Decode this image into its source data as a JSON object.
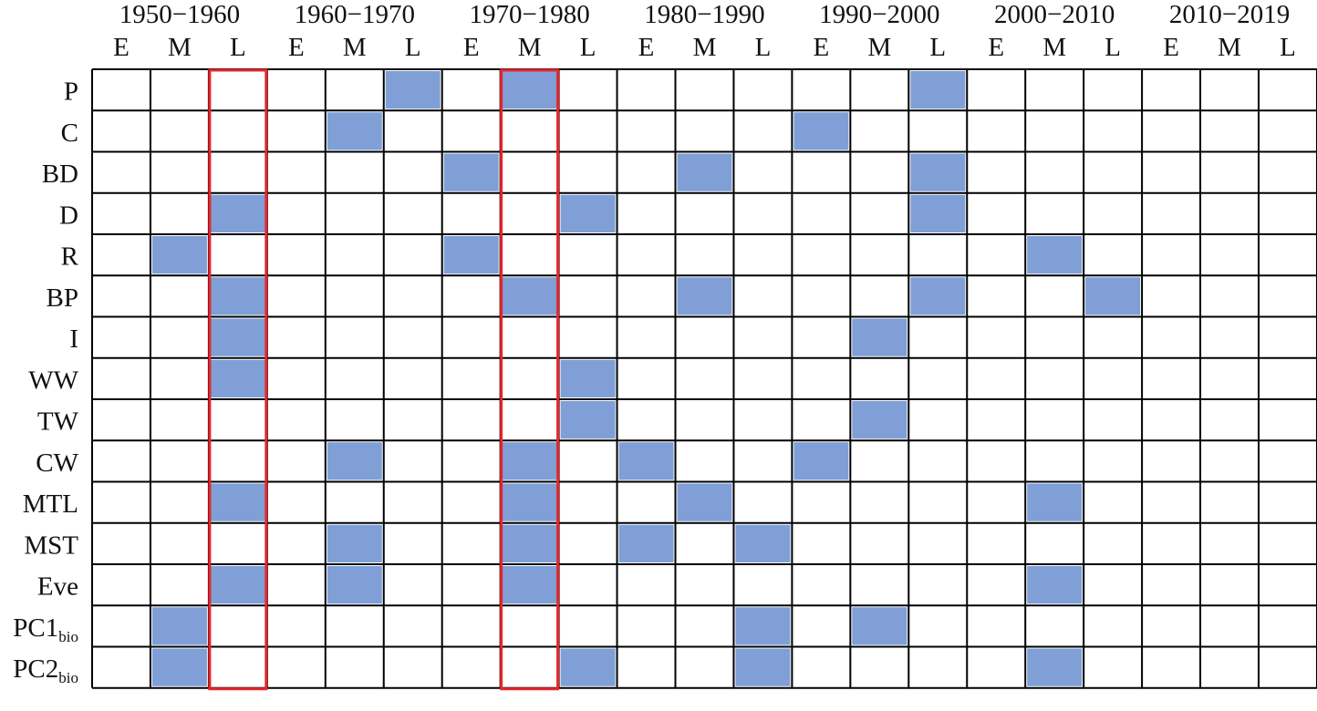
{
  "chart_data": {
    "type": "heatmap",
    "title": "",
    "decades": [
      "1950−1960",
      "1960−1970",
      "1970−1980",
      "1980−1990",
      "1990−2000",
      "2000−2010",
      "2010−2019"
    ],
    "sub_periods": [
      "E",
      "M",
      "L"
    ],
    "rows": [
      {
        "label": "P",
        "sub": ""
      },
      {
        "label": "C",
        "sub": ""
      },
      {
        "label": "BD",
        "sub": ""
      },
      {
        "label": "D",
        "sub": ""
      },
      {
        "label": "R",
        "sub": ""
      },
      {
        "label": "BP",
        "sub": ""
      },
      {
        "label": "I",
        "sub": ""
      },
      {
        "label": "WW",
        "sub": ""
      },
      {
        "label": "TW",
        "sub": ""
      },
      {
        "label": "CW",
        "sub": ""
      },
      {
        "label": "MTL",
        "sub": ""
      },
      {
        "label": "MST",
        "sub": ""
      },
      {
        "label": "Eve",
        "sub": ""
      },
      {
        "label": "PC1",
        "sub": "bio"
      },
      {
        "label": "PC2",
        "sub": "bio"
      }
    ],
    "values": [
      [
        0,
        0,
        0,
        0,
        0,
        1,
        0,
        1,
        0,
        0,
        0,
        0,
        0,
        0,
        1,
        0,
        0,
        0,
        0,
        0,
        0
      ],
      [
        0,
        0,
        0,
        0,
        1,
        0,
        0,
        0,
        0,
        0,
        0,
        0,
        1,
        0,
        0,
        0,
        0,
        0,
        0,
        0,
        0
      ],
      [
        0,
        0,
        0,
        0,
        0,
        0,
        1,
        0,
        0,
        0,
        1,
        0,
        0,
        0,
        1,
        0,
        0,
        0,
        0,
        0,
        0
      ],
      [
        0,
        0,
        1,
        0,
        0,
        0,
        0,
        0,
        1,
        0,
        0,
        0,
        0,
        0,
        1,
        0,
        0,
        0,
        0,
        0,
        0
      ],
      [
        0,
        1,
        0,
        0,
        0,
        0,
        1,
        0,
        0,
        0,
        0,
        0,
        0,
        0,
        0,
        0,
        1,
        0,
        0,
        0,
        0
      ],
      [
        0,
        0,
        1,
        0,
        0,
        0,
        0,
        1,
        0,
        0,
        1,
        0,
        0,
        0,
        1,
        0,
        0,
        1,
        0,
        0,
        0
      ],
      [
        0,
        0,
        1,
        0,
        0,
        0,
        0,
        0,
        0,
        0,
        0,
        0,
        0,
        1,
        0,
        0,
        0,
        0,
        0,
        0,
        0
      ],
      [
        0,
        0,
        1,
        0,
        0,
        0,
        0,
        0,
        1,
        0,
        0,
        0,
        0,
        0,
        0,
        0,
        0,
        0,
        0,
        0,
        0
      ],
      [
        0,
        0,
        0,
        0,
        0,
        0,
        0,
        0,
        1,
        0,
        0,
        0,
        0,
        1,
        0,
        0,
        0,
        0,
        0,
        0,
        0
      ],
      [
        0,
        0,
        0,
        0,
        1,
        0,
        0,
        1,
        0,
        1,
        0,
        0,
        1,
        0,
        0,
        0,
        0,
        0,
        0,
        0,
        0
      ],
      [
        0,
        0,
        1,
        0,
        0,
        0,
        0,
        1,
        0,
        0,
        1,
        0,
        0,
        0,
        0,
        0,
        1,
        0,
        0,
        0,
        0
      ],
      [
        0,
        0,
        0,
        0,
        1,
        0,
        0,
        1,
        0,
        1,
        0,
        1,
        0,
        0,
        0,
        0,
        0,
        0,
        0,
        0,
        0
      ],
      [
        0,
        0,
        1,
        0,
        1,
        0,
        0,
        1,
        0,
        0,
        0,
        0,
        0,
        0,
        0,
        0,
        1,
        0,
        0,
        0,
        0
      ],
      [
        0,
        1,
        0,
        0,
        0,
        0,
        0,
        0,
        0,
        0,
        0,
        1,
        0,
        1,
        0,
        0,
        0,
        0,
        0,
        0,
        0
      ],
      [
        0,
        1,
        0,
        0,
        0,
        0,
        0,
        0,
        1,
        0,
        0,
        1,
        0,
        0,
        0,
        0,
        1,
        0,
        0,
        0,
        0
      ]
    ],
    "highlighted_columns": [
      2,
      7
    ],
    "colors": {
      "fill": "#7f9fd6",
      "grid": "#000000",
      "highlight": "#e8252b",
      "background": "#ffffff"
    },
    "grid": true,
    "legend": "none"
  }
}
